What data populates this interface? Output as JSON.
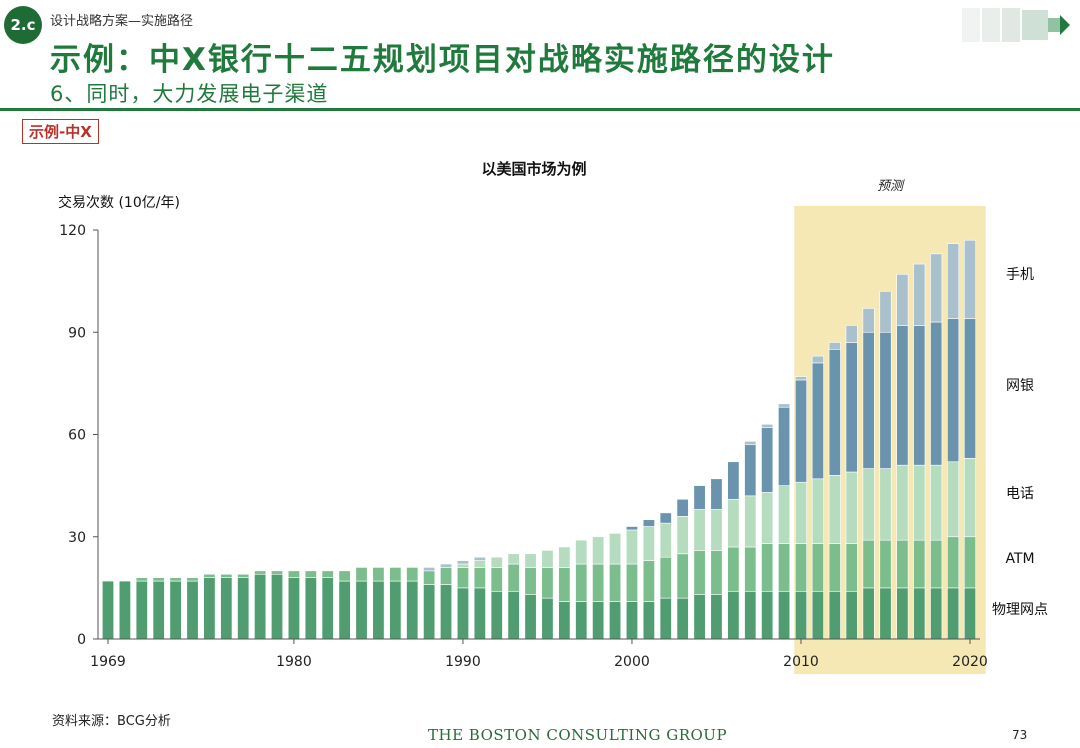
{
  "header": {
    "section_badge": "2.c",
    "breadcrumb": "设计战略方案—实施路径",
    "title": "示例：中X银行十二五规划项目对战略实施路径的设计",
    "subtitle": "6、同时，大力发展电子渠道",
    "tag": "示例-中X"
  },
  "footer": {
    "source": "资料来源：BCG分析",
    "brand": "THE BOSTON CONSULTING GROUP",
    "page_number": "73"
  },
  "colors": {
    "brand_green": "#1f7a3c",
    "tag_red": "#b8322a",
    "forecast_band": "#f6e8b4"
  },
  "chart_data": {
    "type": "bar",
    "stacked": true,
    "title": "以美国市场为例",
    "ylabel": "交易次数 (10亿/年)",
    "ylim": [
      0,
      120
    ],
    "yticks": [
      0,
      30,
      60,
      90,
      120
    ],
    "xlim": [
      1969,
      2020
    ],
    "xticks": [
      1969,
      1980,
      1990,
      2000,
      2010,
      2020
    ],
    "forecast_label": "预测",
    "forecast_range": [
      2010,
      2020
    ],
    "grid": false,
    "x": [
      1969,
      1970,
      1971,
      1972,
      1973,
      1974,
      1975,
      1976,
      1977,
      1978,
      1979,
      1980,
      1981,
      1982,
      1983,
      1984,
      1985,
      1986,
      1987,
      1988,
      1989,
      1990,
      1991,
      1992,
      1993,
      1994,
      1995,
      1996,
      1997,
      1998,
      1999,
      2000,
      2001,
      2002,
      2003,
      2004,
      2005,
      2006,
      2007,
      2008,
      2009,
      2010,
      2011,
      2012,
      2013,
      2014,
      2015,
      2016,
      2017,
      2018,
      2019,
      2020
    ],
    "series": [
      {
        "name": "物理网点",
        "color": "#4f9d70",
        "values": [
          17,
          17,
          17,
          17,
          17,
          17,
          18,
          18,
          18,
          19,
          19,
          18,
          18,
          18,
          17,
          17,
          17,
          17,
          17,
          16,
          16,
          15,
          15,
          14,
          14,
          13,
          12,
          11,
          11,
          11,
          11,
          11,
          11,
          12,
          12,
          13,
          13,
          14,
          14,
          14,
          14,
          14,
          14,
          14,
          14,
          15,
          15,
          15,
          15,
          15,
          15,
          15
        ]
      },
      {
        "name": "ATM",
        "color": "#7cbd8e",
        "values": [
          0,
          0,
          1,
          1,
          1,
          1,
          1,
          1,
          1,
          1,
          1,
          2,
          2,
          2,
          3,
          4,
          4,
          4,
          4,
          4,
          5,
          6,
          6,
          7,
          8,
          8,
          9,
          10,
          11,
          11,
          11,
          11,
          12,
          12,
          13,
          13,
          13,
          13,
          13,
          14,
          14,
          14,
          14,
          14,
          14,
          14,
          14,
          14,
          14,
          14,
          15,
          15
        ]
      },
      {
        "name": "电话",
        "color": "#b6dcbf",
        "values": [
          0,
          0,
          0,
          0,
          0,
          0,
          0,
          0,
          0,
          0,
          0,
          0,
          0,
          0,
          0,
          0,
          0,
          0,
          0,
          0,
          0,
          1,
          2,
          3,
          3,
          4,
          5,
          6,
          7,
          8,
          9,
          10,
          10,
          10,
          11,
          12,
          12,
          14,
          15,
          15,
          17,
          18,
          19,
          20,
          21,
          21,
          21,
          22,
          22,
          22,
          22,
          23
        ]
      },
      {
        "name": "网银",
        "color": "#6a93ae",
        "values": [
          0,
          0,
          0,
          0,
          0,
          0,
          0,
          0,
          0,
          0,
          0,
          0,
          0,
          0,
          0,
          0,
          0,
          0,
          0,
          0,
          0,
          0,
          0,
          0,
          0,
          0,
          0,
          0,
          0,
          0,
          0,
          1,
          2,
          3,
          5,
          7,
          9,
          11,
          15,
          19,
          23,
          30,
          34,
          37,
          38,
          40,
          40,
          41,
          41,
          42,
          42,
          41
        ]
      },
      {
        "name": "手机",
        "color": "#a9c1cc",
        "values": [
          0,
          0,
          0,
          0,
          0,
          0,
          0,
          0,
          0,
          0,
          0,
          0,
          0,
          0,
          0,
          0,
          0,
          0,
          0,
          1,
          1,
          1,
          1,
          0,
          0,
          0,
          0,
          0,
          0,
          0,
          0,
          0,
          0,
          0,
          0,
          0,
          0,
          0,
          1,
          1,
          1,
          1,
          2,
          2,
          5,
          7,
          12,
          15,
          18,
          20,
          22,
          23
        ]
      }
    ]
  }
}
